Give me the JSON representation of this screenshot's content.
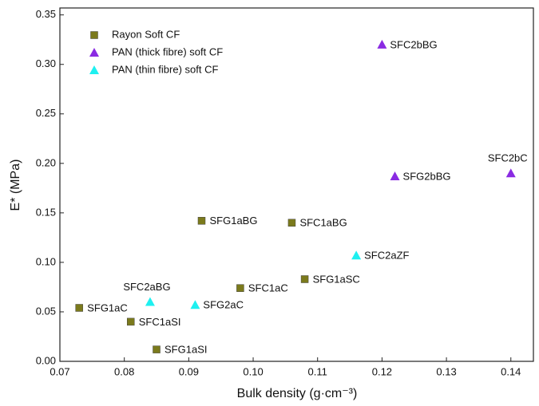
{
  "chart_data": {
    "type": "scatter",
    "xlabel": "Bulk density (g·cm⁻³)",
    "ylabel": "E* (MPa)",
    "xlim": [
      0.07,
      0.1435
    ],
    "ylim": [
      0,
      0.357
    ],
    "xticks": [
      0.07,
      0.08,
      0.09,
      {
        "value": 0.1,
        "label": "0.10"
      },
      0.11,
      0.12,
      0.13,
      0.14
    ],
    "yticks": [
      {
        "value": 0,
        "label": "0.00"
      },
      0.05,
      {
        "value": 0.1,
        "label": "0.10"
      },
      0.15,
      {
        "value": 0.2,
        "label": "0.20"
      },
      0.25,
      {
        "value": 0.3,
        "label": "0.30"
      },
      0.35
    ],
    "legend": "upper left",
    "series": [
      {
        "name": "Rayon Soft CF",
        "color": "#7b7a1c",
        "marker": "square",
        "x": [
          0.073,
          0.081,
          0.085,
          0.098,
          0.108,
          0.092,
          0.106
        ],
        "values": [
          0.054,
          0.04,
          0.012,
          0.074,
          0.083,
          0.142,
          0.14
        ],
        "labels": [
          "SFG1aC",
          "SFC1aSI",
          "SFG1aSI",
          "SFC1aC",
          "SFG1aSC",
          "SFG1aBG",
          "SFC1aBG"
        ]
      },
      {
        "name": "PAN (thick fibre) soft CF",
        "color": "#8a2be2",
        "marker": "triangle",
        "x": [
          0.12,
          0.122,
          0.14
        ],
        "values": [
          0.32,
          0.187,
          0.19
        ],
        "labels": [
          "SFC2bBG",
          "SFG2bBG",
          "SFC2bC"
        ]
      },
      {
        "name": "PAN (thin fibre) soft CF",
        "color": "#1ef0f0",
        "marker": "triangle",
        "x": [
          0.084,
          0.091,
          0.116
        ],
        "values": [
          0.06,
          0.057,
          0.107
        ],
        "labels": [
          "SFC2aBG",
          "SFG2aC",
          "SFC2aZF"
        ]
      }
    ]
  }
}
